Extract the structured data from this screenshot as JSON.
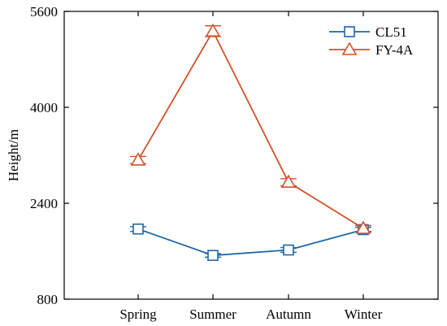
{
  "chart_data": {
    "type": "line",
    "title": "",
    "xlabel": "",
    "ylabel": "Height/m",
    "categories": [
      "Spring",
      "Summer",
      "Autumn",
      "Winter"
    ],
    "ylim": [
      800,
      5600
    ],
    "yticks": [
      "800",
      "2400",
      "4000",
      "5600"
    ],
    "grid": false,
    "legend_position": "top-right",
    "series": [
      {
        "name": "CL51",
        "color": "#1f66a8",
        "marker": "square",
        "values": [
          1970,
          1530,
          1620,
          1960
        ],
        "errors": [
          40,
          30,
          40,
          40
        ]
      },
      {
        "name": "FY-4A",
        "color": "#d2522a",
        "marker": "triangle",
        "values": [
          3120,
          5270,
          2750,
          1980
        ],
        "errors": [
          60,
          90,
          60,
          50
        ]
      }
    ]
  }
}
